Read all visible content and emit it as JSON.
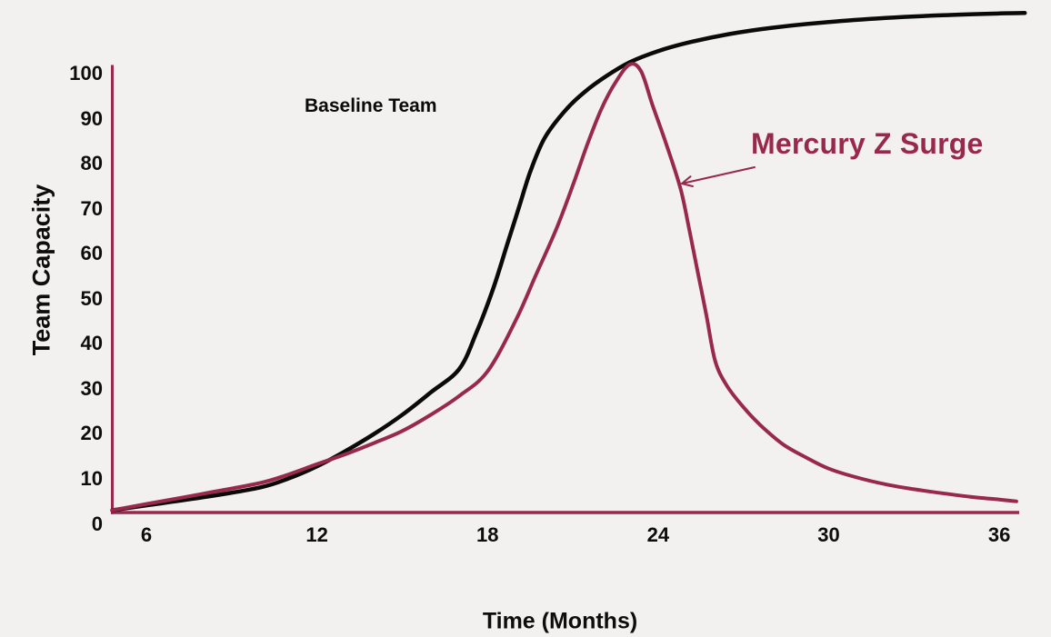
{
  "background_color": "#f2f1ef",
  "chart_data": {
    "type": "line",
    "title": "",
    "xlabel": "Time (Months)",
    "ylabel": "Team Capacity",
    "x_ticks": [
      6,
      12,
      18,
      24,
      30,
      36
    ],
    "y_ticks": [
      0,
      10,
      20,
      30,
      40,
      50,
      60,
      70,
      80,
      90,
      100
    ],
    "xlim": [
      4.8,
      37
    ],
    "ylim": [
      0,
      114
    ],
    "grid": false,
    "axis_color": "#98294b",
    "tick_label_color": "#0d0d0d",
    "series": [
      {
        "name": "Baseline Team",
        "color": "#0a0a0a",
        "points": [
          [
            4.8,
            0.5
          ],
          [
            6,
            1.6
          ],
          [
            8,
            3.4
          ],
          [
            10,
            5.6
          ],
          [
            11,
            7.6
          ],
          [
            12,
            10.3
          ],
          [
            13,
            13.7
          ],
          [
            14,
            17.5
          ],
          [
            15,
            21.8
          ],
          [
            16,
            26.8
          ],
          [
            17,
            32
          ],
          [
            17.6,
            40
          ],
          [
            18.2,
            50
          ],
          [
            18.7,
            60
          ],
          [
            19.1,
            68
          ],
          [
            19.5,
            76
          ],
          [
            20,
            83.5
          ],
          [
            20.7,
            89.5
          ],
          [
            21.4,
            93.8
          ],
          [
            22.2,
            97.5
          ],
          [
            23,
            100.5
          ],
          [
            24,
            103
          ],
          [
            25,
            104.8
          ],
          [
            26.5,
            106.8
          ],
          [
            28,
            108.2
          ],
          [
            30,
            109.5
          ],
          [
            32,
            110.4
          ],
          [
            34,
            111
          ],
          [
            36,
            111.4
          ],
          [
            36.9,
            111.5
          ]
        ]
      },
      {
        "name": "Mercury Z Surge",
        "color": "#98294b",
        "points": [
          [
            4.8,
            0.5
          ],
          [
            6,
            1.9
          ],
          [
            8,
            4.2
          ],
          [
            10,
            6.6
          ],
          [
            11,
            8.5
          ],
          [
            12,
            10.8
          ],
          [
            13,
            13
          ],
          [
            14,
            15.5
          ],
          [
            15,
            18.2
          ],
          [
            16,
            21.8
          ],
          [
            17,
            26
          ],
          [
            18,
            31.5
          ],
          [
            19,
            43
          ],
          [
            19.7,
            53
          ],
          [
            20.4,
            63
          ],
          [
            21,
            73
          ],
          [
            21.5,
            82
          ],
          [
            22,
            90
          ],
          [
            22.5,
            96
          ],
          [
            23,
            100
          ],
          [
            23.4,
            98.5
          ],
          [
            23.8,
            91
          ],
          [
            24.3,
            82
          ],
          [
            24.8,
            72
          ],
          [
            25.1,
            63
          ],
          [
            25.4,
            53.5
          ],
          [
            25.7,
            44
          ],
          [
            26,
            34
          ],
          [
            26.4,
            28.5
          ],
          [
            27,
            23.5
          ],
          [
            27.6,
            19.5
          ],
          [
            28.4,
            15.2
          ],
          [
            29.2,
            12.3
          ],
          [
            30,
            9.8
          ],
          [
            31,
            7.8
          ],
          [
            32,
            6.3
          ],
          [
            33,
            5.2
          ],
          [
            34,
            4.3
          ],
          [
            35,
            3.5
          ],
          [
            36,
            2.9
          ],
          [
            36.6,
            2.5
          ]
        ]
      }
    ],
    "annotations": [
      {
        "text": "Baseline Team",
        "color": "#0a0a0a",
        "arrow": false
      },
      {
        "text": "Mercury Z Surge",
        "color": "#98294b",
        "arrow": true,
        "arrow_points_to": [
          24.8,
          73
        ]
      }
    ]
  }
}
